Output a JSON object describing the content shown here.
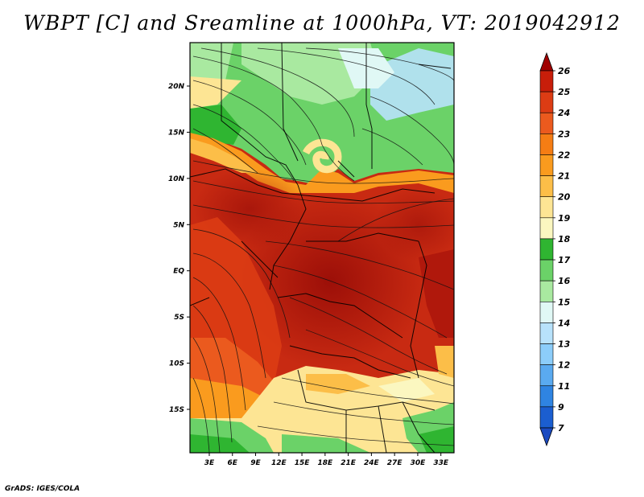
{
  "title": "WBPT [C] and Sreamline at 1000hPa, VT: 2019042912",
  "footer": "GrADS: IGES/COLA",
  "map": {
    "lat_labels": [
      "20N",
      "15N",
      "10N",
      "5N",
      "EQ",
      "5S",
      "10S",
      "15S"
    ],
    "lat_values": [
      20,
      15,
      10,
      5,
      0,
      -5,
      -10,
      -15
    ],
    "lon_labels": [
      "3E",
      "6E",
      "9E",
      "12E",
      "15E",
      "18E",
      "21E",
      "24E",
      "27E",
      "30E",
      "33E"
    ],
    "lon_values": [
      3,
      6,
      9,
      12,
      15,
      18,
      21,
      24,
      27,
      30,
      33
    ],
    "lon_range": [
      0.5,
      34.7
    ],
    "lat_range": [
      -19.7,
      24.7
    ]
  },
  "colorbar": {
    "labels": [
      "26",
      "25",
      "24",
      "23",
      "22",
      "21",
      "20",
      "19",
      "18",
      "17",
      "16",
      "15",
      "14",
      "13",
      "12",
      "11",
      "9",
      "7"
    ],
    "colors": [
      "#a00000",
      "#c81e0a",
      "#dc3c14",
      "#eb5a1e",
      "#f57d14",
      "#fa9b1e",
      "#fcbe48",
      "#fde594",
      "#fbf7c0",
      "#2fb531",
      "#6bd268",
      "#a9e9a0",
      "#e0f8f5",
      "#b8e2fb",
      "#8ccdfa",
      "#5aaaf0",
      "#2f84e2",
      "#1b5ed0",
      "#1b4ac0"
    ]
  }
}
